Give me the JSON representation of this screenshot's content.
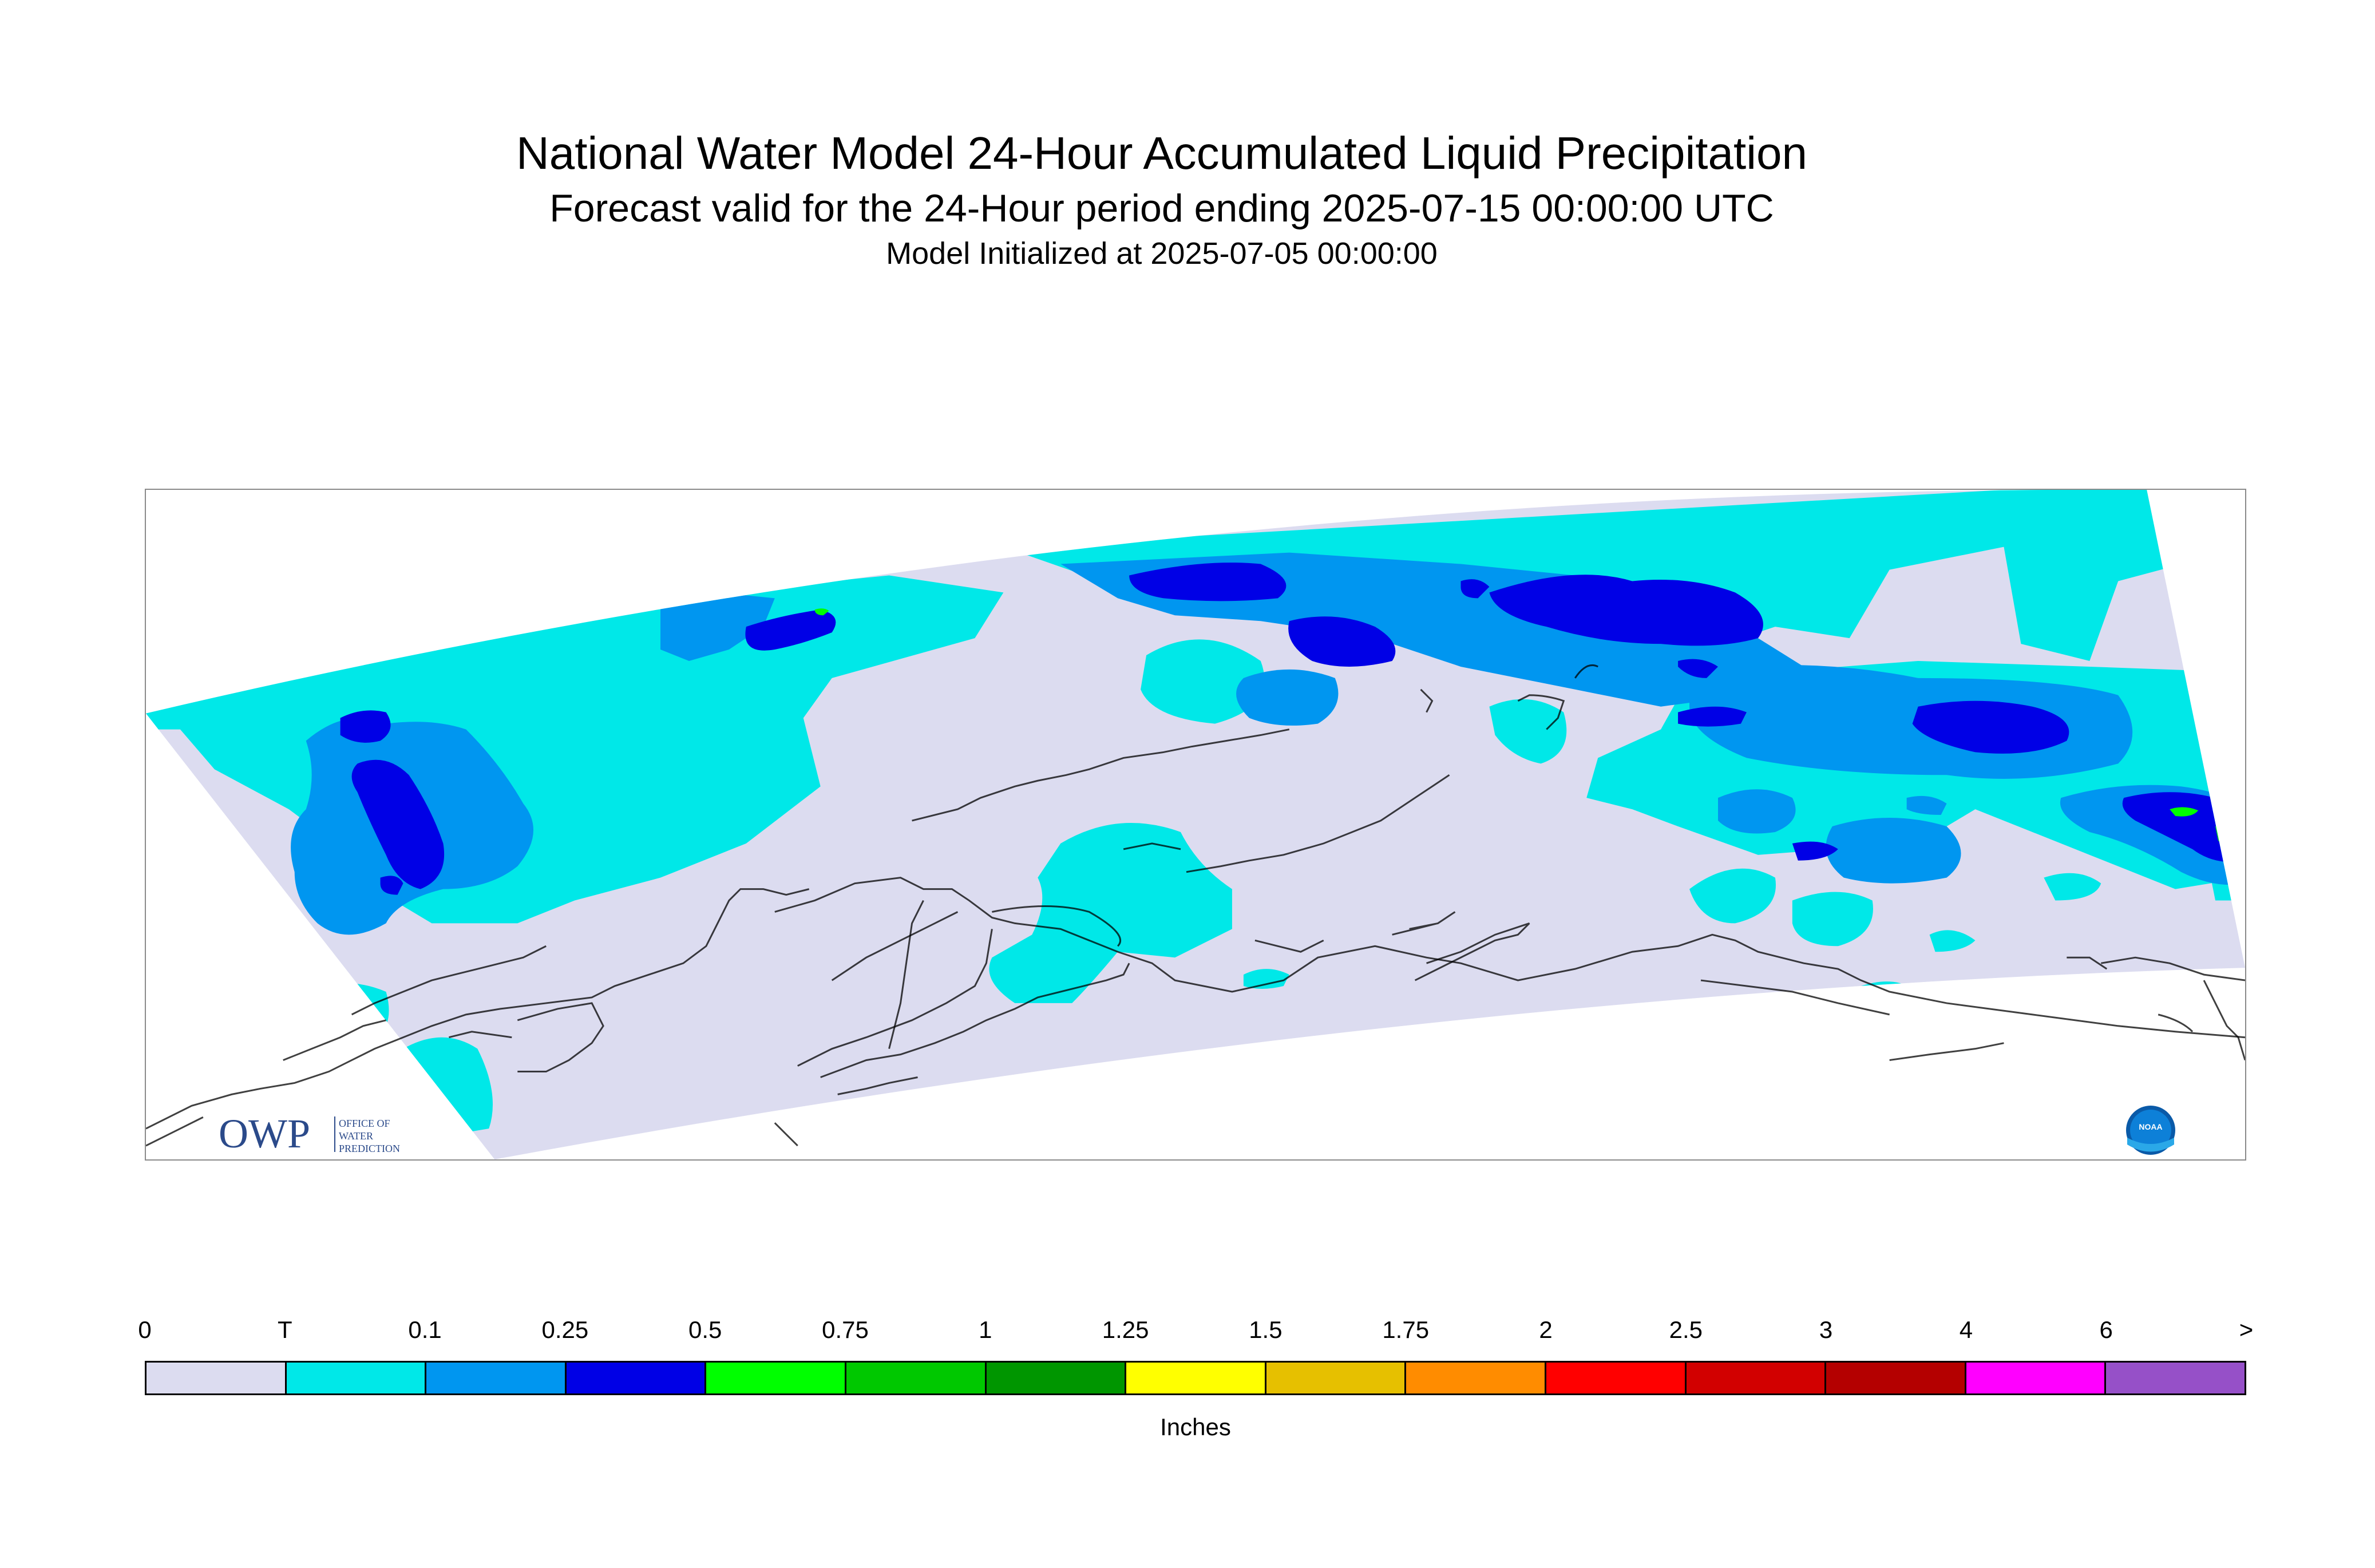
{
  "title": {
    "line1": "National Water Model 24-Hour Accumulated Liquid Precipitation",
    "line2": "Forecast valid for the 24-Hour period ending 2025-07-15 00:00:00 UTC",
    "line3": "Model Initialized at 2025-07-05 00:00:00"
  },
  "colors": {
    "background_domain": "#dcdcf0",
    "zero": "#dcdcf0",
    "trace": "#00e8e8",
    "p0_1": "#0096f0",
    "p0_25": "#0000e6",
    "p0_5": "#00ff00",
    "coastline": "#000000"
  },
  "legend": {
    "labels": [
      "0",
      "T",
      "0.1",
      "0.25",
      "0.5",
      "0.75",
      "1",
      "1.25",
      "1.5",
      "1.75",
      "2",
      "2.5",
      "3",
      "4",
      "6",
      ">"
    ],
    "colors": [
      "#dcdcf0",
      "#00e8e8",
      "#0096f0",
      "#0000e6",
      "#00ff00",
      "#00c800",
      "#009600",
      "#ffff00",
      "#e6c000",
      "#ff8c00",
      "#ff0000",
      "#d20000",
      "#b40000",
      "#ff00ff",
      "#9650c8"
    ],
    "units": "Inches"
  },
  "logos": {
    "owp_text": "OWP",
    "owp_sub1": "OFFICE OF",
    "owp_sub2": "WATER",
    "owp_sub3": "PREDICTION",
    "noaa_text": "NOAA"
  }
}
